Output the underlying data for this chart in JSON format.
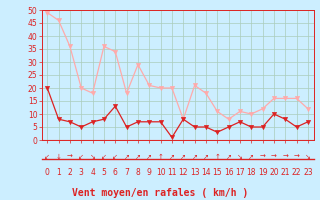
{
  "x": [
    0,
    1,
    2,
    3,
    4,
    5,
    6,
    7,
    8,
    9,
    10,
    11,
    12,
    13,
    14,
    15,
    16,
    17,
    18,
    19,
    20,
    21,
    22,
    23
  ],
  "wind_avg": [
    20,
    8,
    7,
    5,
    7,
    8,
    13,
    5,
    7,
    7,
    7,
    1,
    8,
    5,
    5,
    3,
    5,
    7,
    5,
    5,
    10,
    8,
    5,
    7
  ],
  "wind_gust": [
    49,
    46,
    36,
    20,
    18,
    36,
    34,
    18,
    29,
    21,
    20,
    20,
    8,
    21,
    18,
    11,
    8,
    11,
    10,
    12,
    16,
    16,
    16,
    12
  ],
  "line_color_avg": "#dd2222",
  "line_color_gust": "#ffaaaa",
  "bg_color": "#cceeff",
  "grid_color": "#aaccbb",
  "axis_color": "#dd2222",
  "xlabel": "Vent moyen/en rafales ( km/h )",
  "ylim": [
    0,
    50
  ],
  "yticks": [
    0,
    5,
    10,
    15,
    20,
    25,
    30,
    35,
    40,
    45,
    50
  ],
  "arrows": [
    "↙",
    "↓",
    "→",
    "↙",
    "↘",
    "↙",
    "↙",
    "↗",
    "↗",
    "↗",
    "↑",
    "↗",
    "↗",
    "↗",
    "↗",
    "↑",
    "↗",
    "↘",
    "↗",
    "→",
    "→",
    "→",
    "→",
    "↘"
  ],
  "tick_fontsize": 5.5,
  "label_fontsize": 7,
  "arrow_fontsize": 5
}
